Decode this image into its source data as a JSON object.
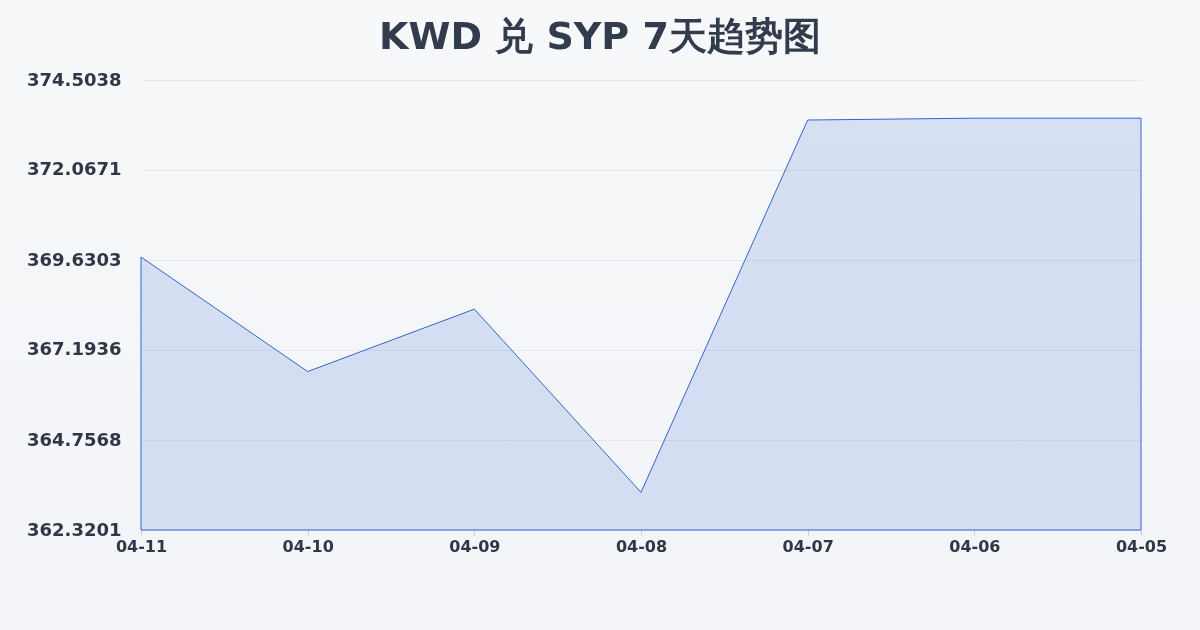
{
  "chart_data": {
    "type": "area",
    "title": "KWD 兑 SYP 7天趋势图",
    "categories": [
      "04-11",
      "04-10",
      "04-09",
      "04-08",
      "04-07",
      "04-06",
      "04-05"
    ],
    "series": [
      {
        "color": "#3366cc",
        "values": [
          369.71,
          366.61,
          368.3,
          363.34,
          373.42,
          373.47,
          373.47
        ]
      }
    ],
    "ylim": [
      362.3201,
      374.5038
    ],
    "yticks": [
      362.3201,
      364.7568,
      367.1936,
      369.6303,
      372.0671,
      374.5038
    ],
    "grid": "y"
  }
}
